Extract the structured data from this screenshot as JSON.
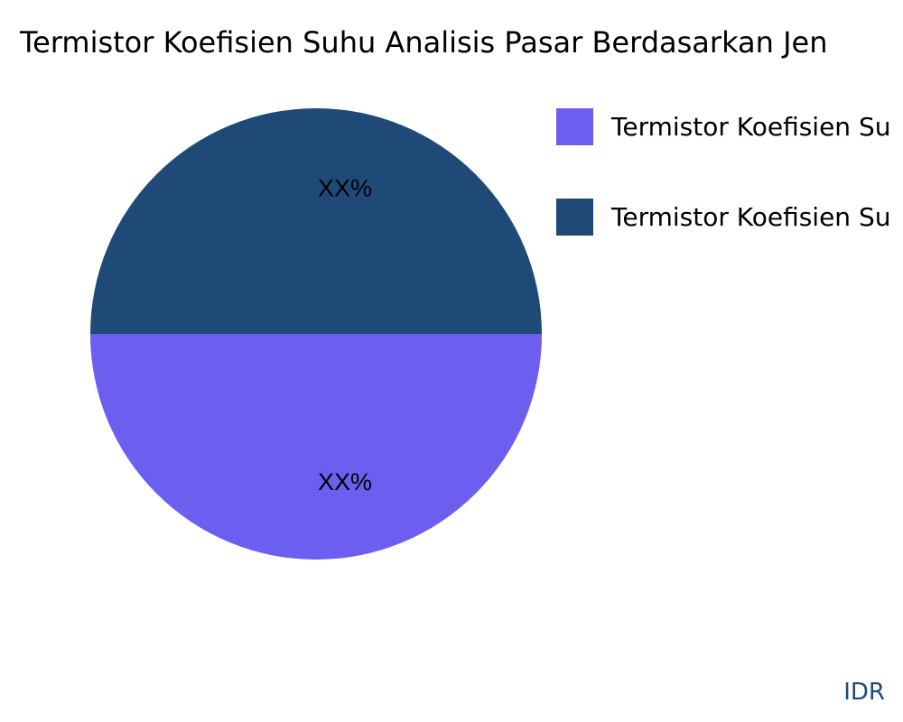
{
  "chart_data": {
    "type": "pie",
    "title": "Termistor Koefisien Suhu Analisis Pasar Berdasarkan Jen",
    "slices": [
      {
        "legend": "Termistor Koefisien Su",
        "value": 50,
        "label": "XX%",
        "color": "#6c5ff0"
      },
      {
        "legend": "Termistor Koefisien Su",
        "value": 50,
        "label": "XX%",
        "color": "#1f4a78"
      }
    ],
    "legend_placement": "top-right"
  },
  "watermark": "IDR"
}
